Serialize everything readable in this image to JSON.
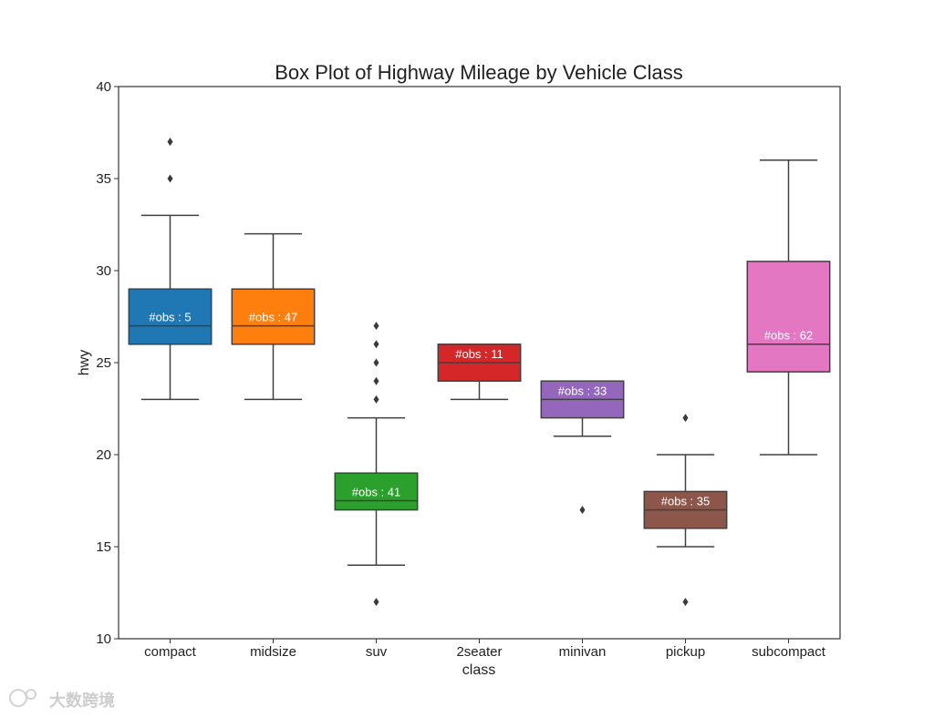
{
  "chart_data": {
    "type": "box",
    "title": "Box Plot of Highway Mileage by Vehicle Class",
    "xlabel": "class",
    "ylabel": "hwy",
    "ylim": [
      10,
      40
    ],
    "yticks": [
      10,
      15,
      20,
      25,
      30,
      35,
      40
    ],
    "grid": false,
    "categories": [
      "compact",
      "midsize",
      "suv",
      "2seater",
      "minivan",
      "pickup",
      "subcompact"
    ],
    "boxes": [
      {
        "category": "compact",
        "color": "#1f77b4",
        "whisker_low": 23,
        "q1": 26,
        "median": 27,
        "q3": 29,
        "whisker_high": 33,
        "outliers": [
          35,
          37
        ],
        "obs_label": "#obs : 5",
        "obs_y": 27.5
      },
      {
        "category": "midsize",
        "color": "#ff7f0e",
        "whisker_low": 23,
        "q1": 26,
        "median": 27,
        "q3": 29,
        "whisker_high": 32,
        "outliers": [],
        "obs_label": "#obs : 47",
        "obs_y": 27.5
      },
      {
        "category": "suv",
        "color": "#2ca02c",
        "whisker_low": 14,
        "q1": 17,
        "median": 17.5,
        "q3": 19,
        "whisker_high": 22,
        "outliers": [
          12,
          23,
          24,
          25,
          26,
          27
        ],
        "obs_label": "#obs : 41",
        "obs_y": 18
      },
      {
        "category": "2seater",
        "color": "#d62728",
        "whisker_low": 23,
        "q1": 24,
        "median": 25,
        "q3": 26,
        "whisker_high": 26,
        "outliers": [],
        "obs_label": "#obs : 11",
        "obs_y": 25.5
      },
      {
        "category": "minivan",
        "color": "#9467bd",
        "whisker_low": 21,
        "q1": 22,
        "median": 23,
        "q3": 24,
        "whisker_high": 24,
        "outliers": [
          17
        ],
        "obs_label": "#obs : 33",
        "obs_y": 23.5
      },
      {
        "category": "pickup",
        "color": "#8c564b",
        "whisker_low": 15,
        "q1": 16,
        "median": 17,
        "q3": 18,
        "whisker_high": 20,
        "outliers": [
          12,
          22
        ],
        "obs_label": "#obs : 35",
        "obs_y": 17.5
      },
      {
        "category": "subcompact",
        "color": "#e377c2",
        "whisker_low": 20,
        "q1": 24.5,
        "median": 26,
        "q3": 30.5,
        "whisker_high": 36,
        "outliers": [],
        "obs_label": "#obs : 62",
        "obs_y": 26.5
      }
    ]
  },
  "watermark": {
    "text": "大数跨境"
  }
}
